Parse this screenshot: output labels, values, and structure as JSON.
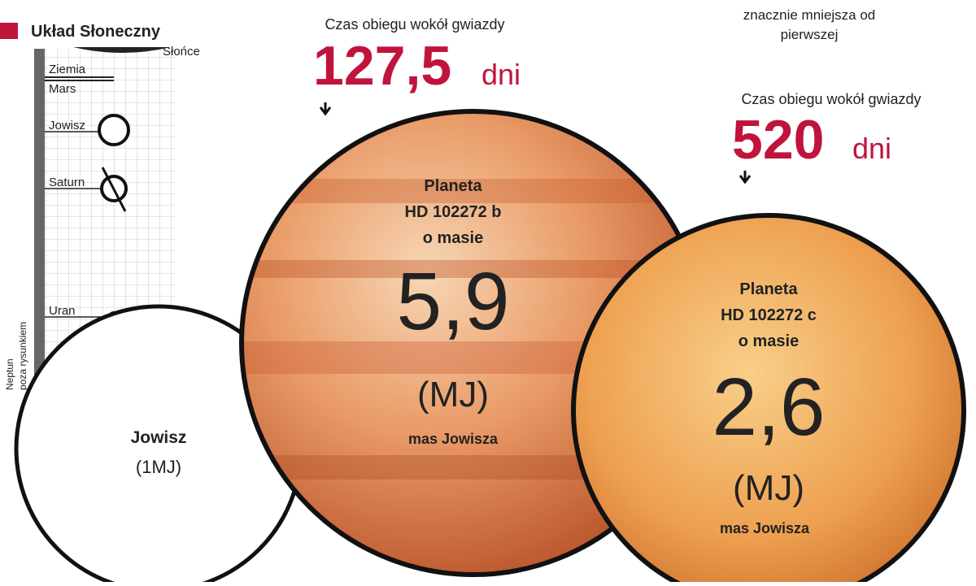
{
  "solar_system": {
    "title": "Układ Słoneczny",
    "sun": "Słońce",
    "planets": [
      "Ziemia",
      "Mars",
      "Jowisz",
      "Saturn",
      "Uran"
    ],
    "neptune_note": [
      "Neptun",
      "poza rysunkiem"
    ]
  },
  "jupiter": {
    "name": "Jowisz",
    "mass": "(1MJ)"
  },
  "top_note": [
    "znacznie mniejsza od",
    "pierwszej"
  ],
  "planet_b": {
    "orbit_label": "Czas obiegu wokół gwiazdy",
    "orbit_value": "127,5",
    "orbit_unit": "dni",
    "name_lines": [
      "Planeta",
      "HD 102272 b",
      "o masie"
    ],
    "mass": "5,9",
    "mass_unit": "(MJ)",
    "mass_caption": "mas Jowisza"
  },
  "planet_c": {
    "orbit_label": "Czas obiegu wokół gwiazdy",
    "orbit_value": "520",
    "orbit_unit": "dni",
    "name_lines": [
      "Planeta",
      "HD 102272 c",
      "o masie"
    ],
    "mass": "2,6",
    "mass_unit": "(MJ)",
    "mass_caption": "mas Jowisza"
  }
}
